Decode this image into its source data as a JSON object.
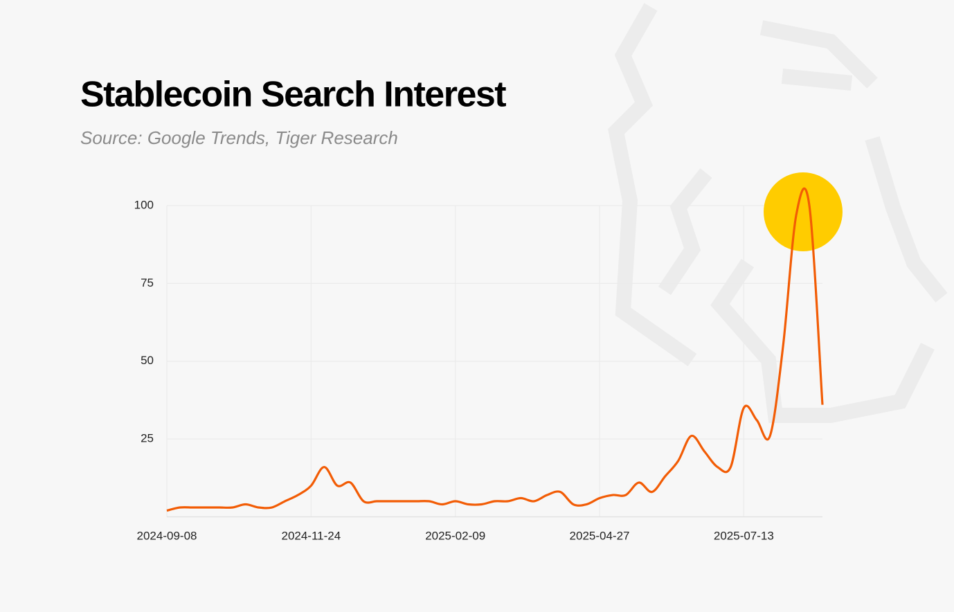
{
  "chart_data": {
    "type": "line",
    "title": "Stablecoin Search Interest",
    "subtitle": "Source: Google Trends, Tiger Research",
    "x": [
      "2024-09-08",
      "2024-09-15",
      "2024-09-22",
      "2024-09-29",
      "2024-10-06",
      "2024-10-13",
      "2024-10-20",
      "2024-10-27",
      "2024-11-03",
      "2024-11-10",
      "2024-11-17",
      "2024-11-24",
      "2024-12-01",
      "2024-12-08",
      "2024-12-15",
      "2024-12-22",
      "2024-12-29",
      "2025-01-05",
      "2025-01-12",
      "2025-01-19",
      "2025-01-26",
      "2025-02-02",
      "2025-02-09",
      "2025-02-16",
      "2025-02-23",
      "2025-03-02",
      "2025-03-09",
      "2025-03-16",
      "2025-03-23",
      "2025-03-30",
      "2025-04-06",
      "2025-04-13",
      "2025-04-20",
      "2025-04-27",
      "2025-05-04",
      "2025-05-11",
      "2025-05-18",
      "2025-05-25",
      "2025-06-01",
      "2025-06-08",
      "2025-06-15",
      "2025-06-22",
      "2025-06-29",
      "2025-07-06",
      "2025-07-13",
      "2025-07-20",
      "2025-07-27",
      "2025-08-03",
      "2025-08-10",
      "2025-08-17",
      "2025-08-24"
    ],
    "series": [
      {
        "color": "#f25c05",
        "values": [
          2,
          3,
          3,
          3,
          3,
          3,
          4,
          3,
          3,
          5,
          7,
          10,
          16,
          10,
          11,
          5,
          5,
          5,
          5,
          5,
          5,
          4,
          5,
          4,
          4,
          5,
          5,
          6,
          5,
          7,
          8,
          4,
          4,
          6,
          7,
          7,
          11,
          8,
          13,
          18,
          26,
          21,
          16,
          16,
          35,
          31,
          26,
          55,
          97,
          100,
          36
        ]
      }
    ],
    "xlim": [
      "2024-09-08",
      "2025-08-24"
    ],
    "xticks": [
      "2024-09-08",
      "2024-11-24",
      "2025-02-09",
      "2025-04-27",
      "2025-07-13"
    ],
    "ylim": [
      0,
      100
    ],
    "yticks": [
      25,
      50,
      75,
      100
    ],
    "grid": true
  }
}
